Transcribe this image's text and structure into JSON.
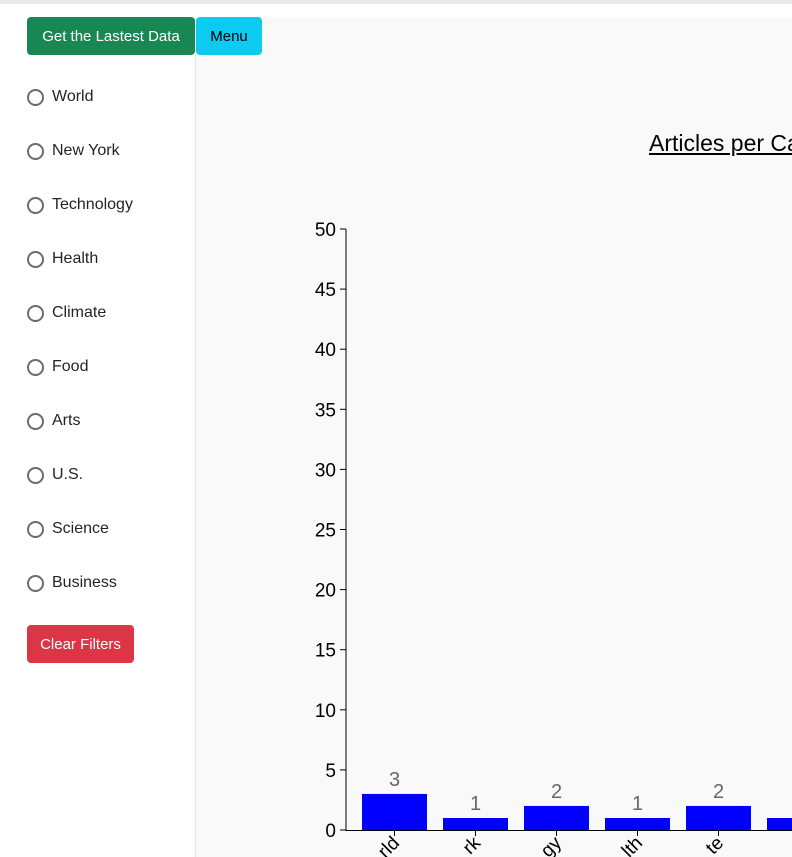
{
  "toolbar": {
    "latest_label": "Get the Lastest Data",
    "menu_label": "Menu"
  },
  "sidebar": {
    "filters": [
      {
        "label": "World",
        "checked": false
      },
      {
        "label": "New York",
        "checked": false
      },
      {
        "label": "Technology",
        "checked": false
      },
      {
        "label": "Health",
        "checked": false
      },
      {
        "label": "Climate",
        "checked": false
      },
      {
        "label": "Food",
        "checked": false
      },
      {
        "label": "Arts",
        "checked": false
      },
      {
        "label": "U.S.",
        "checked": false
      },
      {
        "label": "Science",
        "checked": false
      },
      {
        "label": "Business",
        "checked": false
      }
    ],
    "clear_label": "Clear Filters"
  },
  "colors": {
    "success": "#198754",
    "info": "#0dcaf0",
    "danger": "#dc3545",
    "bar": "#0000ff"
  },
  "chart_data": {
    "type": "bar",
    "title": "Articles per Ca",
    "categories": [
      "rld",
      "rk",
      "gy",
      "lth",
      "te",
      ""
    ],
    "values": [
      3,
      1,
      2,
      1,
      2,
      1
    ],
    "data_labels": [
      "3",
      "1",
      "2",
      "1",
      "2",
      ""
    ],
    "ylim": [
      0,
      50
    ],
    "yticks": [
      0,
      5,
      10,
      15,
      20,
      25,
      30,
      35,
      40,
      45,
      50
    ],
    "grid": false
  }
}
